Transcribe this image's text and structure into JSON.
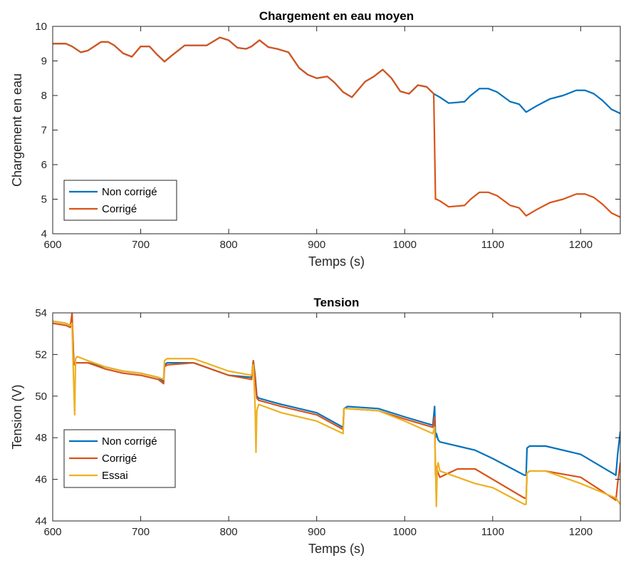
{
  "chart_data": [
    {
      "type": "line",
      "title": "Chargement en eau moyen",
      "xlabel": "Temps (s)",
      "ylabel": "Chargement en eau",
      "xlim": [
        600,
        1245
      ],
      "ylim": [
        4,
        10
      ],
      "xticks": [
        600,
        700,
        800,
        900,
        1000,
        1100,
        1200
      ],
      "yticks": [
        4,
        5,
        6,
        7,
        8,
        9,
        10
      ],
      "grid": false,
      "legend": "bottom-left",
      "series": [
        {
          "name": "Non corrigé",
          "color": "#0072BD",
          "x": [
            600,
            615,
            622,
            632,
            640,
            655,
            663,
            670,
            680,
            690,
            700,
            710,
            718,
            727,
            735,
            750,
            760,
            775,
            790,
            800,
            810,
            820,
            826,
            835,
            845,
            855,
            868,
            880,
            890,
            900,
            912,
            920,
            930,
            940,
            945,
            955,
            965,
            975,
            985,
            995,
            1005,
            1015,
            1025,
            1033,
            1040,
            1050,
            1060,
            1068,
            1075,
            1085,
            1095,
            1105,
            1120,
            1130,
            1138,
            1150,
            1165,
            1180,
            1195,
            1205,
            1215,
            1225,
            1235,
            1245
          ],
          "y": [
            9.5,
            9.5,
            9.42,
            9.25,
            9.3,
            9.55,
            9.55,
            9.45,
            9.22,
            9.12,
            9.42,
            9.42,
            9.2,
            8.98,
            9.15,
            9.45,
            9.45,
            9.45,
            9.68,
            9.6,
            9.38,
            9.35,
            9.42,
            9.6,
            9.4,
            9.35,
            9.25,
            8.8,
            8.6,
            8.5,
            8.55,
            8.38,
            8.1,
            7.95,
            8.1,
            8.4,
            8.55,
            8.75,
            8.5,
            8.12,
            8.05,
            8.3,
            8.25,
            8.05,
            7.95,
            7.78,
            7.8,
            7.82,
            8.0,
            8.2,
            8.2,
            8.1,
            7.82,
            7.75,
            7.52,
            7.7,
            7.9,
            8.0,
            8.15,
            8.15,
            8.05,
            7.85,
            7.6,
            7.48
          ]
        },
        {
          "name": "Corrigé",
          "color": "#D95319",
          "x": [
            600,
            615,
            622,
            632,
            640,
            655,
            663,
            670,
            680,
            690,
            700,
            710,
            718,
            727,
            735,
            750,
            760,
            775,
            790,
            800,
            810,
            820,
            826,
            835,
            845,
            855,
            868,
            880,
            890,
            900,
            912,
            920,
            930,
            940,
            945,
            955,
            965,
            975,
            985,
            995,
            1005,
            1015,
            1025,
            1033,
            1035,
            1036,
            1040,
            1050,
            1060,
            1068,
            1075,
            1085,
            1095,
            1105,
            1120,
            1130,
            1138,
            1150,
            1165,
            1180,
            1195,
            1205,
            1215,
            1225,
            1235,
            1245
          ],
          "y": [
            9.5,
            9.5,
            9.42,
            9.25,
            9.3,
            9.55,
            9.55,
            9.45,
            9.22,
            9.12,
            9.42,
            9.42,
            9.2,
            8.98,
            9.15,
            9.45,
            9.45,
            9.45,
            9.68,
            9.6,
            9.38,
            9.35,
            9.42,
            9.6,
            9.4,
            9.35,
            9.25,
            8.8,
            8.6,
            8.5,
            8.55,
            8.38,
            8.1,
            7.95,
            8.1,
            8.4,
            8.55,
            8.75,
            8.5,
            8.12,
            8.05,
            8.3,
            8.25,
            8.05,
            5.0,
            5.0,
            4.95,
            4.78,
            4.8,
            4.82,
            5.0,
            5.2,
            5.2,
            5.1,
            4.82,
            4.75,
            4.52,
            4.7,
            4.9,
            5.0,
            5.15,
            5.15,
            5.05,
            4.85,
            4.6,
            4.48
          ]
        }
      ]
    },
    {
      "type": "line",
      "title": "Tension",
      "xlabel": "Temps (s)",
      "ylabel": "Tension (V)",
      "xlim": [
        600,
        1245
      ],
      "ylim": [
        44,
        54
      ],
      "xticks": [
        600,
        700,
        800,
        900,
        1000,
        1100,
        1200
      ],
      "yticks": [
        44,
        46,
        48,
        50,
        52,
        54
      ],
      "grid": false,
      "legend": "bottom-left",
      "series": [
        {
          "name": "Non corrigé",
          "color": "#0072BD",
          "x": [
            600,
            615,
            620,
            622,
            624,
            626,
            640,
            660,
            680,
            700,
            720,
            726,
            727,
            730,
            760,
            800,
            826,
            828,
            830,
            832,
            834,
            860,
            900,
            930,
            931,
            935,
            970,
            1000,
            1032,
            1034,
            1035,
            1036,
            1038,
            1040,
            1060,
            1080,
            1100,
            1136,
            1138,
            1139,
            1142,
            1160,
            1200,
            1240,
            1242,
            1245
          ],
          "y": [
            53.6,
            53.5,
            53.4,
            53.8,
            51.5,
            51.6,
            51.6,
            51.4,
            51.2,
            51.1,
            50.9,
            50.7,
            51.5,
            51.6,
            51.6,
            51.0,
            50.9,
            51.7,
            51.0,
            50.0,
            49.9,
            49.6,
            49.2,
            48.5,
            49.4,
            49.5,
            49.4,
            49.0,
            48.6,
            49.5,
            48.0,
            48.2,
            47.9,
            47.8,
            47.6,
            47.4,
            47.0,
            46.2,
            46.2,
            47.5,
            47.6,
            47.6,
            47.2,
            46.2,
            47.2,
            48.3
          ]
        },
        {
          "name": "Corrigé",
          "color": "#D95319",
          "x": [
            600,
            615,
            620,
            622,
            624,
            626,
            640,
            660,
            680,
            700,
            720,
            726,
            727,
            730,
            760,
            800,
            826,
            828,
            830,
            832,
            834,
            860,
            900,
            930,
            931,
            935,
            970,
            1000,
            1032,
            1034,
            1035,
            1036,
            1038,
            1040,
            1060,
            1080,
            1100,
            1136,
            1138,
            1139,
            1142,
            1160,
            1200,
            1240,
            1242,
            1245
          ],
          "y": [
            53.5,
            53.4,
            53.3,
            54.0,
            51.5,
            51.6,
            51.6,
            51.3,
            51.1,
            51.0,
            50.8,
            50.6,
            51.4,
            51.5,
            51.6,
            51.0,
            50.8,
            51.7,
            50.9,
            49.9,
            49.8,
            49.5,
            49.1,
            48.4,
            49.4,
            49.4,
            49.3,
            48.9,
            48.5,
            49.0,
            46.2,
            46.6,
            46.3,
            46.1,
            46.5,
            46.5,
            46.0,
            45.1,
            45.1,
            46.3,
            46.4,
            46.4,
            46.1,
            45.0,
            45.8,
            46.8
          ]
        },
        {
          "name": "Essai",
          "color": "#EDB120",
          "x": [
            600,
            615,
            620,
            622,
            623,
            625,
            626,
            628,
            640,
            660,
            680,
            700,
            720,
            726,
            727,
            730,
            760,
            800,
            826,
            828,
            830,
            831,
            832,
            834,
            860,
            900,
            930,
            931,
            935,
            970,
            1000,
            1032,
            1034,
            1036,
            1037,
            1038,
            1040,
            1060,
            1080,
            1100,
            1136,
            1138,
            1139,
            1142,
            1160,
            1200,
            1240,
            1245
          ],
          "y": [
            53.6,
            53.5,
            53.4,
            53.5,
            51.8,
            49.1,
            51.8,
            51.9,
            51.7,
            51.4,
            51.2,
            51.1,
            50.9,
            50.8,
            51.7,
            51.8,
            51.8,
            51.2,
            51.0,
            51.5,
            49.5,
            47.3,
            49.3,
            49.6,
            49.2,
            48.8,
            48.2,
            49.4,
            49.4,
            49.3,
            48.8,
            48.2,
            48.5,
            44.7,
            46.6,
            46.8,
            46.4,
            46.1,
            45.8,
            45.6,
            44.8,
            44.8,
            46.3,
            46.4,
            46.4,
            45.8,
            45.1,
            44.8
          ]
        }
      ]
    }
  ]
}
